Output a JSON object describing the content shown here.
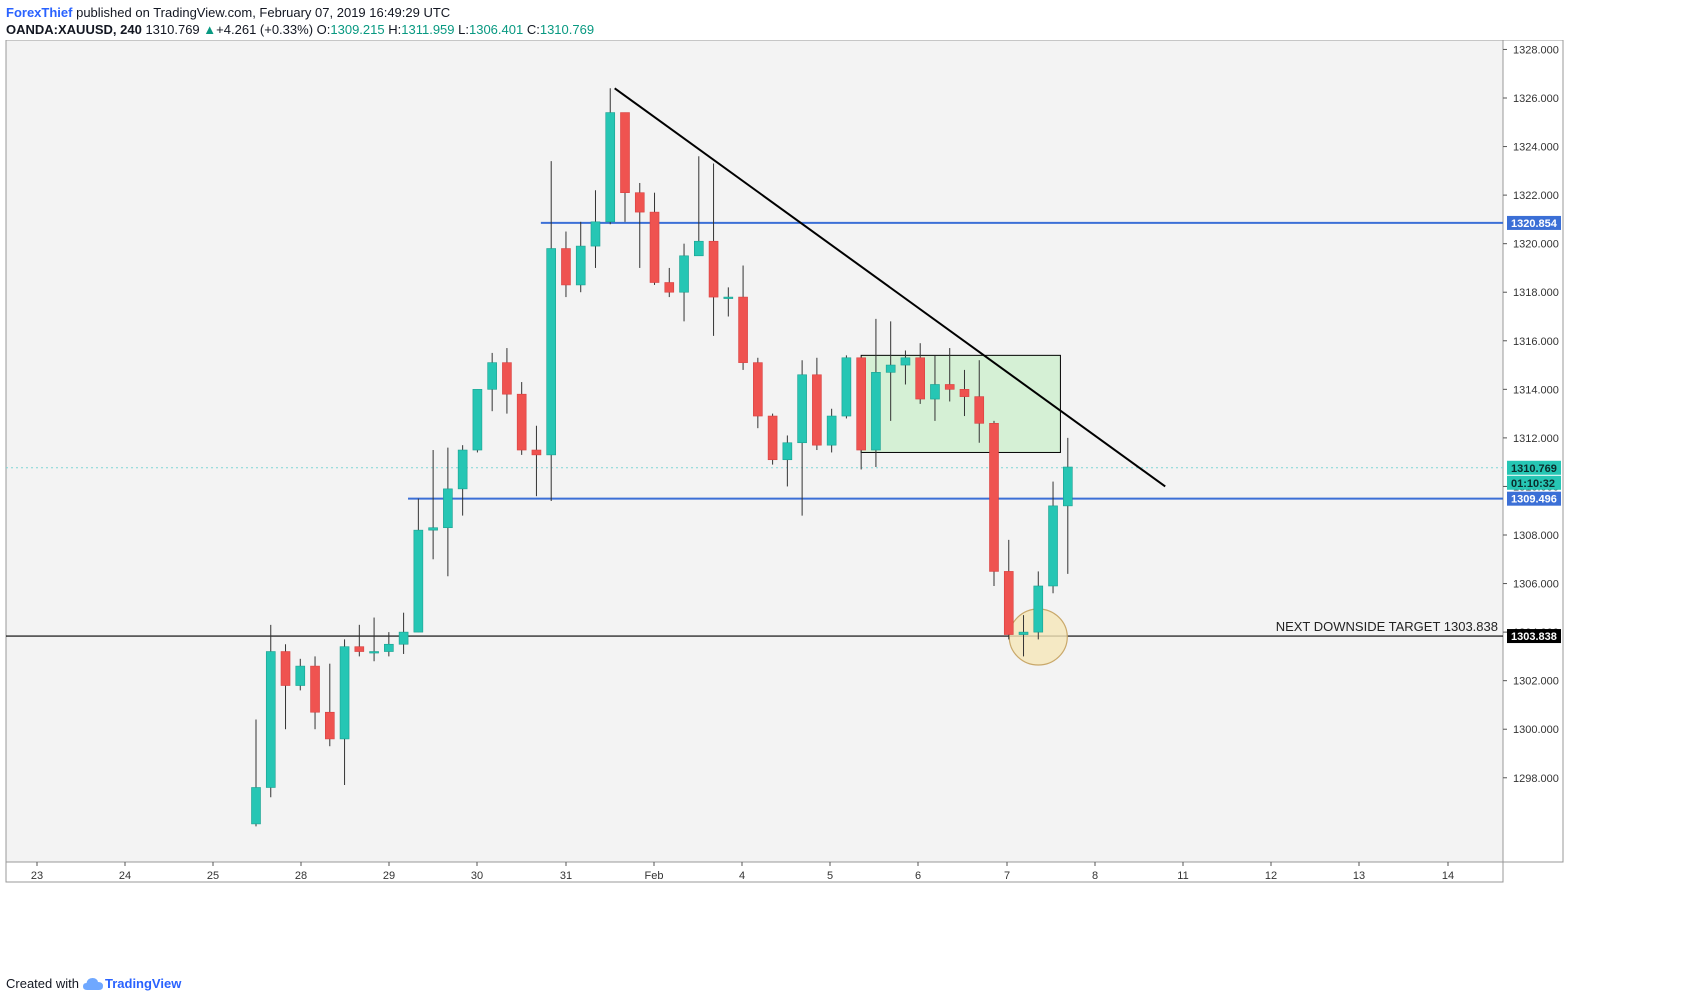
{
  "header": {
    "author": "ForexThief",
    "published_text": "published on TradingView.com, February 07, 2019 16:49:29 UTC",
    "symbol": "OANDA:XAUUSD, 240",
    "last": "1310.769",
    "change": "+4.261 (+0.33%)",
    "o_label": "O:",
    "o_value": "1309.215",
    "h_label": "H:",
    "h_value": "1311.959",
    "l_label": "L:",
    "l_value": "1306.401",
    "c_label": "C:",
    "c_value": "1310.769"
  },
  "footer": {
    "created_with": "Created with",
    "brand": "TradingView"
  },
  "colors": {
    "up": "#26c6b4",
    "down": "#ef5350",
    "bg": "#f3f3f3",
    "level": "#3b6fd6",
    "black_level": "#000000",
    "zone_fill": "#cfeecf"
  },
  "chart_data": {
    "type": "candlestick",
    "y_range": [
      1296.0,
      1330.0
    ],
    "y_ticks": [
      "1298.000",
      "1300.000",
      "1302.000",
      "1304.000",
      "1306.000",
      "1308.000",
      "1310.000",
      "1312.000",
      "1314.000",
      "1316.000",
      "1318.000",
      "1320.000",
      "1322.000",
      "1324.000",
      "1326.000",
      "1328.000"
    ],
    "x_ticks": [
      "23",
      "24",
      "25",
      "28",
      "29",
      "30",
      "31",
      "Feb",
      "4",
      "5",
      "6",
      "7",
      "8",
      "11",
      "12",
      "13",
      "14"
    ],
    "candles": [
      [
        1296.1,
        1297.6,
        1296.0,
        1300.4
      ],
      [
        1297.6,
        1303.2,
        1297.2,
        1304.3
      ],
      [
        1303.2,
        1301.8,
        1300.0,
        1303.5
      ],
      [
        1301.8,
        1302.6,
        1301.6,
        1302.9
      ],
      [
        1302.6,
        1300.7,
        1300.0,
        1303.0
      ],
      [
        1300.7,
        1299.6,
        1299.3,
        1302.7
      ],
      [
        1299.6,
        1303.4,
        1297.7,
        1303.7
      ],
      [
        1303.4,
        1303.2,
        1303.0,
        1304.3
      ],
      [
        1303.2,
        1303.2,
        1302.8,
        1304.6
      ],
      [
        1303.2,
        1303.5,
        1303.0,
        1304.0
      ],
      [
        1303.5,
        1304.0,
        1303.1,
        1304.8
      ],
      [
        1304.0,
        1308.2,
        1304.0,
        1309.5
      ],
      [
        1308.2,
        1308.3,
        1307.0,
        1311.5
      ],
      [
        1308.3,
        1309.9,
        1306.3,
        1311.6
      ],
      [
        1309.9,
        1311.5,
        1308.8,
        1311.7
      ],
      [
        1311.5,
        1314.0,
        1311.4,
        1314.0
      ],
      [
        1314.0,
        1315.1,
        1313.1,
        1315.5
      ],
      [
        1315.1,
        1313.8,
        1313.0,
        1315.7
      ],
      [
        1313.8,
        1311.5,
        1311.3,
        1314.3
      ],
      [
        1311.5,
        1311.3,
        1309.6,
        1312.5
      ],
      [
        1311.3,
        1319.8,
        1309.4,
        1323.4
      ],
      [
        1319.8,
        1318.3,
        1317.8,
        1320.5
      ],
      [
        1318.3,
        1319.9,
        1318.0,
        1320.9
      ],
      [
        1319.9,
        1320.9,
        1319.0,
        1322.2
      ],
      [
        1320.9,
        1325.4,
        1320.8,
        1326.4
      ],
      [
        1325.4,
        1322.1,
        1320.9,
        1325.4
      ],
      [
        1322.1,
        1321.3,
        1319.0,
        1322.5
      ],
      [
        1321.3,
        1318.4,
        1318.3,
        1322.1
      ],
      [
        1318.4,
        1318.0,
        1317.8,
        1319.0
      ],
      [
        1318.0,
        1319.5,
        1316.8,
        1320.0
      ],
      [
        1319.5,
        1320.1,
        1319.5,
        1323.6
      ],
      [
        1320.1,
        1317.8,
        1316.2,
        1323.3
      ],
      [
        1317.8,
        1317.8,
        1317.0,
        1318.2
      ],
      [
        1317.8,
        1315.1,
        1314.8,
        1319.1
      ],
      [
        1315.1,
        1312.9,
        1312.4,
        1315.3
      ],
      [
        1312.9,
        1311.1,
        1310.9,
        1313.0
      ],
      [
        1311.1,
        1311.8,
        1310.0,
        1312.1
      ],
      [
        1311.8,
        1314.6,
        1308.8,
        1315.2
      ],
      [
        1314.6,
        1311.7,
        1311.5,
        1315.3
      ],
      [
        1311.7,
        1312.9,
        1311.4,
        1313.2
      ],
      [
        1312.9,
        1315.3,
        1312.8,
        1315.4
      ],
      [
        1315.3,
        1311.5,
        1310.7,
        1315.3
      ],
      [
        1311.5,
        1314.7,
        1310.8,
        1316.9
      ],
      [
        1314.7,
        1315.0,
        1312.7,
        1316.8
      ],
      [
        1315.0,
        1315.3,
        1314.2,
        1315.6
      ],
      [
        1315.3,
        1313.6,
        1313.4,
        1315.9
      ],
      [
        1313.6,
        1314.2,
        1312.7,
        1315.4
      ],
      [
        1314.2,
        1314.0,
        1313.5,
        1315.7
      ],
      [
        1314.0,
        1313.7,
        1312.9,
        1314.8
      ],
      [
        1313.7,
        1312.6,
        1311.8,
        1315.2
      ],
      [
        1312.6,
        1306.5,
        1305.9,
        1312.7
      ],
      [
        1306.5,
        1303.9,
        1303.7,
        1307.8
      ],
      [
        1303.9,
        1304.0,
        1303.0,
        1304.7
      ],
      [
        1304.0,
        1305.9,
        1303.7,
        1306.5
      ],
      [
        1305.9,
        1309.2,
        1305.6,
        1310.2
      ],
      [
        1309.2,
        1310.8,
        1306.4,
        1312.0
      ]
    ],
    "levels": [
      {
        "price": 1320.854,
        "label": "1320.854"
      },
      {
        "price": 1309.496,
        "label": "1309.496"
      },
      {
        "price": 1303.838,
        "label": "1303.838"
      }
    ],
    "current_price_label": "1310.769",
    "countdown_label": "01:10:32",
    "annotation": "NEXT DOWNSIDE TARGET 1303.838",
    "trendline": {
      "from": [
        24.3,
        1326.4
      ],
      "to": [
        61.6,
        1310.0
      ]
    },
    "zone": {
      "x0": 41.0,
      "x1": 54.5,
      "y_top": 1315.4,
      "y_bottom": 1311.4
    },
    "highlight_circle": {
      "x": 53.0,
      "y": 1303.8
    }
  }
}
